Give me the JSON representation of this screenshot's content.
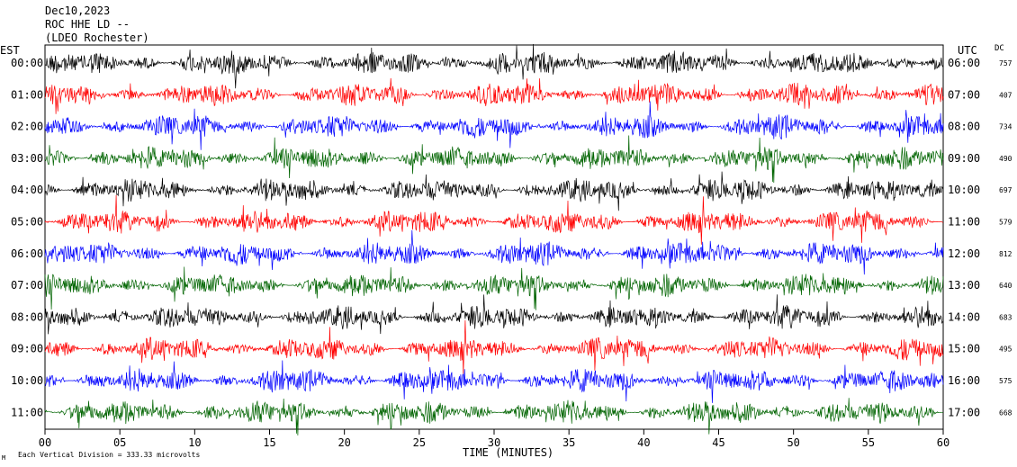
{
  "header": {
    "date": "Dec10,2023",
    "station": "ROC HHE LD --",
    "location": "(LDEO Rochester)"
  },
  "left_axis_label": "EST",
  "right_axis_label": "UTC",
  "dc_label": "DC",
  "footer": {
    "scale_note": "Each Vertical Division =  333.33 microvolts",
    "corner_mark": "M"
  },
  "colors": {
    "black": "#000000",
    "red": "#ff0000",
    "blue": "#0000ff",
    "green": "#006400"
  },
  "chart_data": {
    "type": "line",
    "title": "",
    "xlabel": "TIME (MINUTES)",
    "ylabel": "",
    "x_ticks": [
      "00",
      "05",
      "10",
      "15",
      "20",
      "25",
      "30",
      "35",
      "40",
      "45",
      "50",
      "55",
      "60"
    ],
    "xlim": [
      0,
      60
    ],
    "rows": [
      {
        "est": "00:00",
        "utc": "06:00",
        "dc": "757",
        "color": "black"
      },
      {
        "est": "01:00",
        "utc": "07:00",
        "dc": "407",
        "color": "red"
      },
      {
        "est": "02:00",
        "utc": "08:00",
        "dc": "734",
        "color": "blue"
      },
      {
        "est": "03:00",
        "utc": "09:00",
        "dc": "490",
        "color": "green"
      },
      {
        "est": "04:00",
        "utc": "10:00",
        "dc": "697",
        "color": "black"
      },
      {
        "est": "05:00",
        "utc": "11:00",
        "dc": "579",
        "color": "red"
      },
      {
        "est": "06:00",
        "utc": "12:00",
        "dc": "812",
        "color": "blue"
      },
      {
        "est": "07:00",
        "utc": "13:00",
        "dc": "640",
        "color": "green"
      },
      {
        "est": "08:00",
        "utc": "14:00",
        "dc": "683",
        "color": "black"
      },
      {
        "est": "09:00",
        "utc": "15:00",
        "dc": "495",
        "color": "red"
      },
      {
        "est": "10:00",
        "utc": "16:00",
        "dc": "575",
        "color": "blue"
      },
      {
        "est": "11:00",
        "utc": "17:00",
        "dc": "668",
        "color": "green"
      }
    ]
  }
}
